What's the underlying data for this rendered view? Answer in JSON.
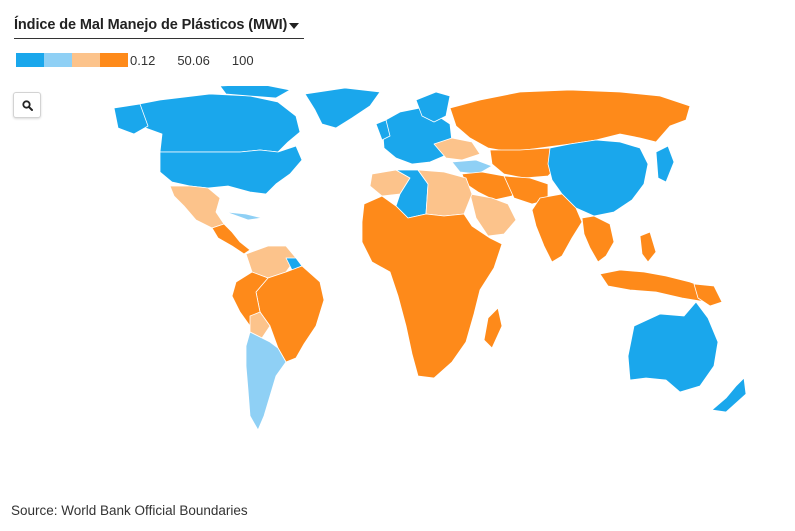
{
  "selector": {
    "label": "Índice de Mal Manejo de Plásticos (MWI)",
    "icon": "caret-down-icon"
  },
  "legend": {
    "min_label": "0.12",
    "mid_label": "50.06",
    "max_label": "100",
    "colors": [
      "#1AA7EC",
      "#8FD0F5",
      "#FCC38B",
      "#FE8A1A"
    ]
  },
  "zoom_button": {
    "icon": "search-icon"
  },
  "map": {
    "color_scale": {
      "low": "#1AA7EC",
      "low_mid": "#8FD0F5",
      "high_mid": "#FCC38B",
      "high": "#FE8A1A"
    }
  },
  "footer": {
    "source": "Source: World Bank Official Boundaries"
  }
}
